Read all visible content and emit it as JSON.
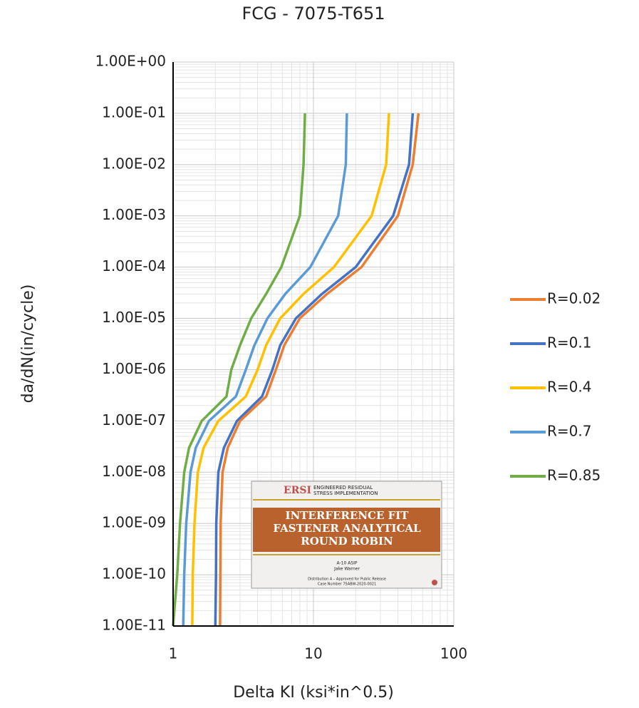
{
  "chart_data": {
    "type": "line",
    "title": "FCG - 7075-T651",
    "x_label": "Delta KI (ksi*in^0.5)",
    "y_label": "da/dN(in/cycle)",
    "x_log": true,
    "y_log": true,
    "grid": true,
    "minor_grid": true,
    "legend": "right",
    "xlim": [
      1,
      100
    ],
    "xticks": [
      1,
      10,
      100
    ],
    "ylim": [
      1e-11,
      1
    ],
    "yticks": [
      {
        "value": 1e-11,
        "label": "1.00E-11"
      },
      {
        "value": 1e-10,
        "label": "1.00E-10"
      },
      {
        "value": 1e-09,
        "label": "1.00E-09"
      },
      {
        "value": 1e-08,
        "label": "1.00E-08"
      },
      {
        "value": 1e-07,
        "label": "1.00E-07"
      },
      {
        "value": 1e-06,
        "label": "1.00E-06"
      },
      {
        "value": 1e-05,
        "label": "1.00E-05"
      },
      {
        "value": 0.0001,
        "label": "1.00E-04"
      },
      {
        "value": 0.001,
        "label": "1.00E-03"
      },
      {
        "value": 0.01,
        "label": "1.00E-02"
      },
      {
        "value": 0.1,
        "label": "1.00E-01"
      },
      {
        "value": 1,
        "label": "1.00E+00"
      }
    ],
    "series": [
      {
        "name": "R=0.02",
        "color": "#ed7d31",
        "x": [
          2.16,
          2.17,
          2.18,
          2.25,
          2.45,
          3.0,
          4.6,
          5.4,
          6.2,
          8.0,
          12.5,
          22,
          40,
          51,
          56
        ],
        "values": [
          1e-11,
          1e-10,
          1e-09,
          1e-08,
          3e-08,
          1e-07,
          3e-07,
          1e-06,
          3e-06,
          1e-05,
          3e-05,
          0.0001,
          0.001,
          0.01,
          0.1
        ]
      },
      {
        "name": "R=0.1",
        "color": "#4472c4",
        "x": [
          2.0,
          2.02,
          2.03,
          2.1,
          2.3,
          2.85,
          4.3,
          5.1,
          5.8,
          7.5,
          11.5,
          20,
          37,
          48,
          51
        ],
        "values": [
          1e-11,
          1e-10,
          1e-09,
          1e-08,
          3e-08,
          1e-07,
          3e-07,
          1e-06,
          3e-06,
          1e-05,
          3e-05,
          0.0001,
          0.001,
          0.01,
          0.1
        ]
      },
      {
        "name": "R=0.4",
        "color": "#ffc000",
        "x": [
          1.37,
          1.38,
          1.42,
          1.5,
          1.65,
          2.1,
          3.3,
          4.0,
          4.6,
          5.8,
          8.5,
          14,
          26,
          33,
          34.5
        ],
        "values": [
          1e-11,
          1e-10,
          1e-09,
          1e-08,
          3e-08,
          1e-07,
          3e-07,
          1e-06,
          3e-06,
          1e-05,
          3e-05,
          0.0001,
          0.001,
          0.01,
          0.1
        ]
      },
      {
        "name": "R=0.7",
        "color": "#5b9bd5",
        "x": [
          1.18,
          1.2,
          1.24,
          1.33,
          1.45,
          1.8,
          2.8,
          3.3,
          3.8,
          4.7,
          6.3,
          9.5,
          15,
          17,
          17.3
        ],
        "values": [
          1e-11,
          1e-10,
          1e-09,
          1e-08,
          3e-08,
          1e-07,
          3e-07,
          1e-06,
          3e-06,
          1e-05,
          3e-05,
          0.0001,
          0.001,
          0.01,
          0.1
        ]
      },
      {
        "name": "R=0.85",
        "color": "#70ad47",
        "x": [
          1.0,
          1.07,
          1.12,
          1.2,
          1.3,
          1.6,
          2.4,
          2.6,
          3.0,
          3.6,
          4.6,
          5.9,
          8.0,
          8.5,
          8.7
        ],
        "values": [
          1e-11,
          1e-10,
          1e-09,
          1e-08,
          3e-08,
          1e-07,
          3e-07,
          1e-06,
          3e-06,
          1e-05,
          3e-05,
          0.0001,
          0.001,
          0.01,
          0.1
        ]
      }
    ],
    "inset": {
      "logo": "ERSI",
      "logo_text": [
        "ENGINEERED RESIDUAL",
        "STRESS IMPLEMENTATION"
      ],
      "title": [
        "INTERFERENCE FIT",
        "FASTENER ANALYTICAL",
        "ROUND ROBIN"
      ],
      "lines": [
        "A-10 ASIP",
        "Jake Warner",
        "Distribution A – Approved for Public Release",
        "Case Number 75ABW-2020-0021"
      ]
    }
  }
}
